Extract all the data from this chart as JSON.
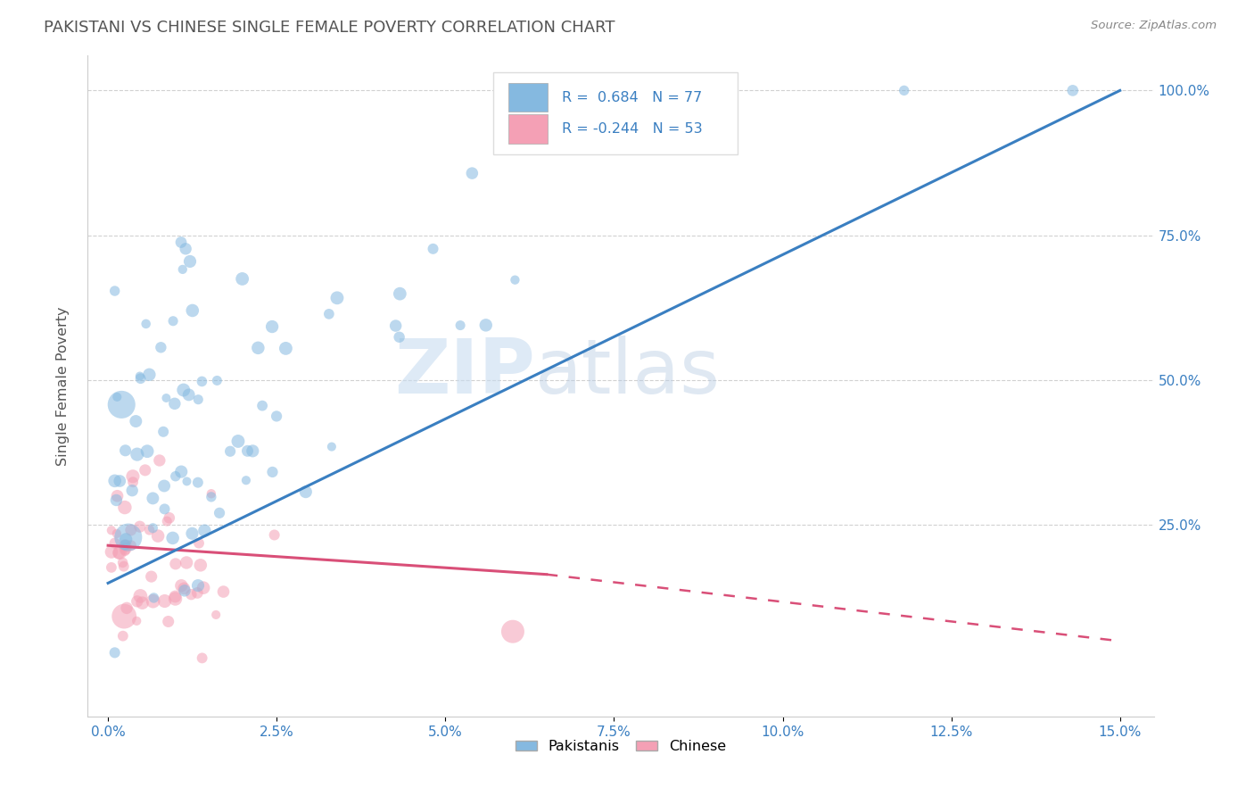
{
  "title": "PAKISTANI VS CHINESE SINGLE FEMALE POVERTY CORRELATION CHART",
  "source": "Source: ZipAtlas.com",
  "ylabel": "Single Female Poverty",
  "legend_pakistani": "Pakistanis",
  "legend_chinese": "Chinese",
  "R_pakistani": 0.684,
  "N_pakistani": 77,
  "R_chinese": -0.244,
  "N_chinese": 53,
  "blue_color": "#85b9e0",
  "pink_color": "#f4a0b5",
  "blue_line_color": "#3a7fc1",
  "pink_line_color": "#d94f78",
  "watermark_zip": "ZIP",
  "watermark_atlas": "atlas",
  "tick_color": "#3a7fc1",
  "grid_color": "#cccccc",
  "title_color": "#555555",
  "ylabel_color": "#555555",
  "source_color": "#888888",
  "x_min": 0.0,
  "x_max": 0.15,
  "y_min": 0.0,
  "y_max": 1.0,
  "y_ticks": [
    0.25,
    0.5,
    0.75,
    1.0
  ],
  "x_ticks": [
    0.0,
    0.025,
    0.05,
    0.075,
    0.1,
    0.125,
    0.15
  ],
  "x_tick_labels": [
    "0.0%",
    "2.5%",
    "5.0%",
    "7.5%",
    "10.0%",
    "12.5%",
    "15.0%"
  ],
  "y_tick_labels": [
    "25.0%",
    "50.0%",
    "75.0%",
    "100.0%"
  ],
  "pak_intercept": 0.155,
  "pak_slope_per_unit": 5.63,
  "chi_intercept": 0.225,
  "chi_slope_per_unit": -0.8
}
